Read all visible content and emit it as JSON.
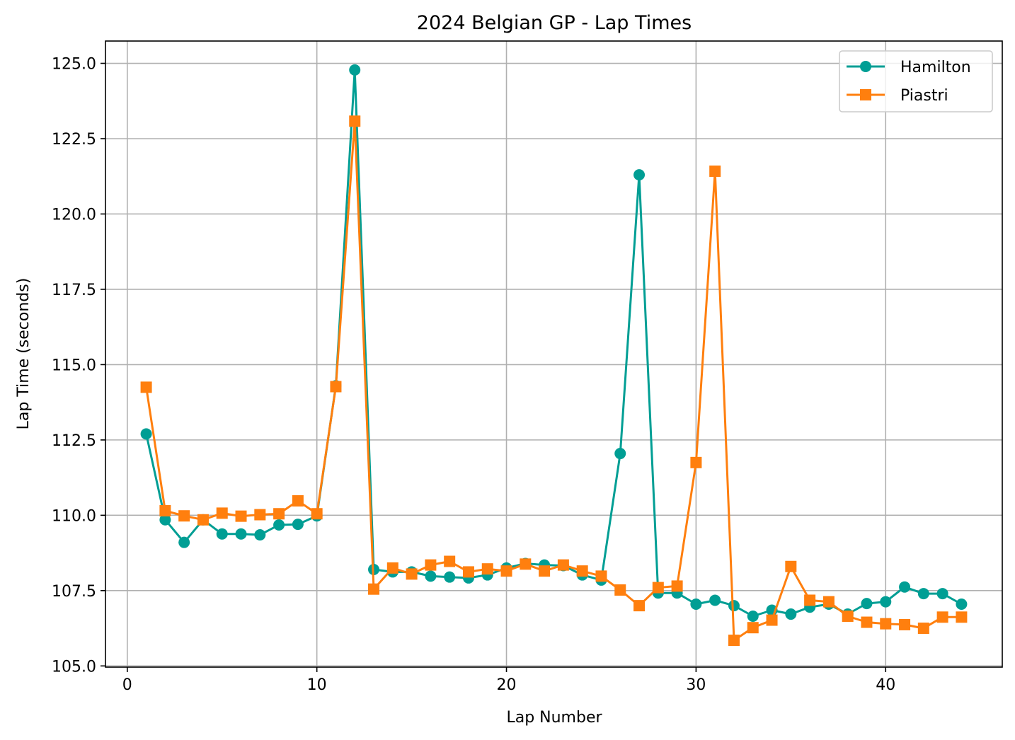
{
  "chart_data": {
    "type": "line",
    "title": "2024 Belgian GP - Lap Times",
    "xlabel": "Lap Number",
    "ylabel": "Lap Time (seconds)",
    "xlim": [
      -1.15,
      46.15
    ],
    "ylim": [
      104.96,
      125.74
    ],
    "xticks": [
      0,
      10,
      20,
      30,
      40
    ],
    "yticks": [
      105.0,
      107.5,
      110.0,
      112.5,
      115.0,
      117.5,
      120.0,
      122.5,
      125.0
    ],
    "ytick_labels": [
      "105.0",
      "107.5",
      "110.0",
      "112.5",
      "115.0",
      "117.5",
      "120.0",
      "122.5",
      "125.0"
    ],
    "grid": true,
    "legend_position": "top-right",
    "x": [
      1,
      2,
      3,
      4,
      5,
      6,
      7,
      8,
      9,
      10,
      11,
      12,
      13,
      14,
      15,
      16,
      17,
      18,
      19,
      20,
      21,
      22,
      23,
      24,
      25,
      26,
      27,
      28,
      29,
      30,
      31,
      32,
      33,
      34,
      35,
      36,
      37,
      38,
      39,
      40,
      41,
      42,
      43,
      44
    ],
    "series": [
      {
        "name": "Hamilton",
        "color": "#009e94",
        "marker": "circle",
        "values": [
          112.7,
          109.85,
          109.1,
          109.85,
          109.38,
          109.38,
          109.35,
          109.68,
          109.7,
          109.98,
          114.3,
          124.78,
          108.2,
          108.12,
          108.12,
          107.98,
          107.95,
          107.92,
          108.02,
          108.25,
          108.4,
          108.35,
          108.33,
          108.02,
          107.85,
          112.05,
          121.3,
          107.42,
          107.42,
          107.05,
          107.18,
          107.0,
          106.65,
          106.85,
          106.72,
          106.95,
          107.05,
          106.72,
          107.07,
          107.13,
          107.62,
          107.4,
          107.4,
          107.05
        ]
      },
      {
        "name": "Piastri",
        "color": "#ff7f0e",
        "marker": "square",
        "values": [
          114.25,
          110.15,
          109.98,
          109.85,
          110.07,
          109.97,
          110.02,
          110.05,
          110.48,
          110.05,
          114.27,
          123.08,
          107.55,
          108.25,
          108.05,
          108.35,
          108.47,
          108.12,
          108.22,
          108.15,
          108.38,
          108.15,
          108.35,
          108.15,
          107.98,
          107.52,
          107.0,
          107.6,
          107.65,
          111.75,
          121.42,
          105.85,
          106.27,
          106.52,
          108.3,
          107.18,
          107.13,
          106.65,
          106.45,
          106.4,
          106.37,
          106.25,
          106.62,
          106.62
        ]
      }
    ]
  }
}
